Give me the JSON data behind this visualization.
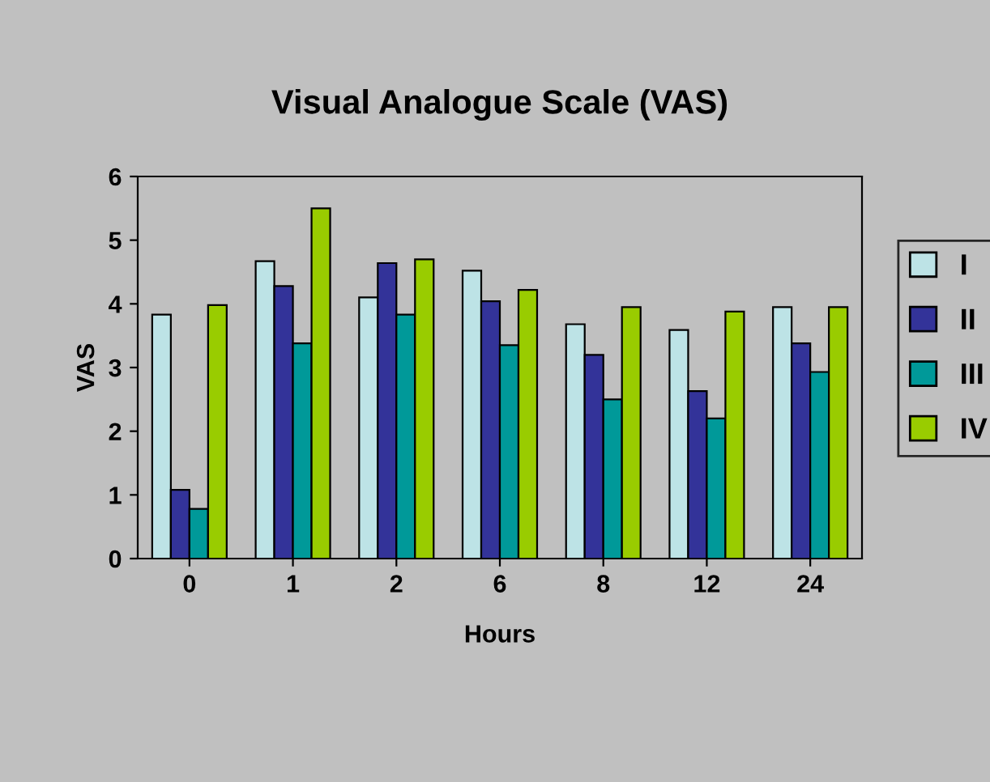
{
  "chart_data": {
    "type": "bar",
    "title": "Visual Analogue Scale (VAS)",
    "xlabel": "Hours",
    "ylabel": "VAS",
    "categories": [
      "0",
      "1",
      "2",
      "6",
      "8",
      "12",
      "24"
    ],
    "series": [
      {
        "name": "I",
        "color": "#bde3e6",
        "values": [
          3.83,
          4.67,
          4.1,
          4.52,
          3.68,
          3.59,
          3.95
        ]
      },
      {
        "name": "II",
        "color": "#333399",
        "values": [
          1.08,
          4.28,
          4.64,
          4.04,
          3.2,
          2.63,
          3.38
        ]
      },
      {
        "name": "III",
        "color": "#009999",
        "values": [
          0.78,
          3.38,
          3.83,
          3.35,
          2.5,
          2.2,
          2.93
        ]
      },
      {
        "name": "IV",
        "color": "#99cc00",
        "values": [
          3.98,
          5.5,
          4.7,
          4.22,
          3.95,
          3.88,
          3.95
        ]
      }
    ],
    "ylim": [
      0,
      6
    ],
    "yticks": [
      0,
      1,
      2,
      3,
      4,
      5,
      6
    ],
    "grid": false,
    "legend": "right"
  }
}
